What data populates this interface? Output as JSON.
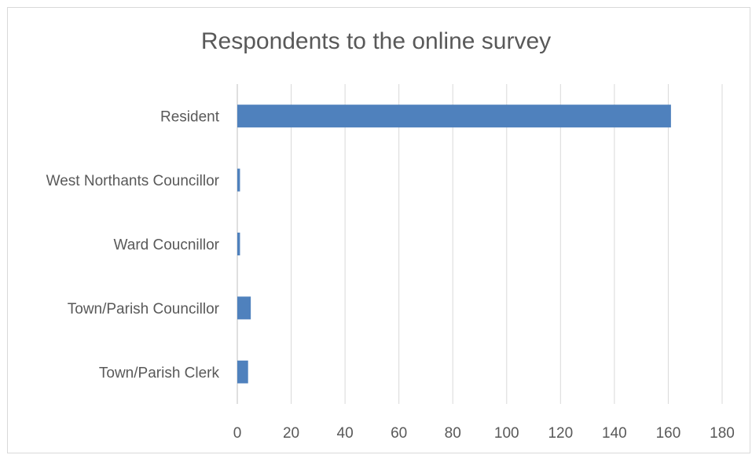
{
  "chart_data": {
    "type": "bar",
    "orientation": "horizontal",
    "title": "Respondents to the online survey",
    "categories": [
      "Resident",
      "West Northants Councillor",
      "Ward Coucnillor",
      "Town/Parish Councillor",
      "Town/Parish Clerk"
    ],
    "values": [
      161,
      1,
      1,
      5,
      4
    ],
    "xlim": [
      0,
      180
    ],
    "xticks": [
      "0",
      "20",
      "40",
      "60",
      "80",
      "100",
      "120",
      "140",
      "160",
      "180"
    ],
    "grid": true,
    "legend": "none",
    "bar_color": "#4f81bd",
    "grid_color": "#d9d9d9",
    "text_color": "#595959"
  }
}
